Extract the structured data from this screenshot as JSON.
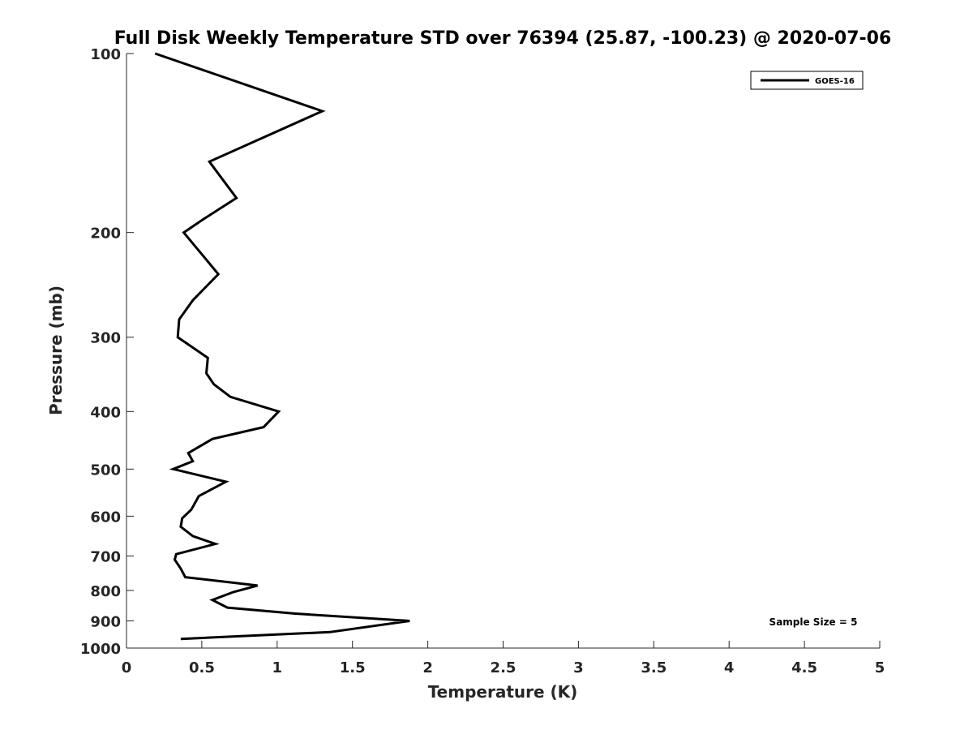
{
  "chart_data": {
    "type": "line",
    "title": "Full Disk Weekly Temperature STD over 76394 (25.87, -100.23) @ 2020-07-06",
    "xlabel": "Temperature (K)",
    "ylabel": "Pressure (mb)",
    "xlim": [
      0,
      5
    ],
    "ylim": [
      100,
      1000
    ],
    "y_scale": "log",
    "y_reversed": true,
    "x_ticks": [
      "0",
      "0.5",
      "1",
      "1.5",
      "2",
      "2.5",
      "3",
      "3.5",
      "4",
      "4.5",
      "5"
    ],
    "y_ticks": [
      "100",
      "200",
      "300",
      "400",
      "500",
      "600",
      "700",
      "800",
      "900",
      "1000"
    ],
    "grid": false,
    "legend_position": "top-right",
    "series": [
      {
        "name": "GOES-16",
        "color": "#000000",
        "points": [
          [
            0.19,
            100
          ],
          [
            1.3,
            125
          ],
          [
            0.55,
            152
          ],
          [
            0.73,
            175
          ],
          [
            0.51,
            190
          ],
          [
            0.38,
            200
          ],
          [
            0.61,
            235
          ],
          [
            0.44,
            260
          ],
          [
            0.35,
            280
          ],
          [
            0.34,
            300
          ],
          [
            0.54,
            325
          ],
          [
            0.53,
            345
          ],
          [
            0.58,
            360
          ],
          [
            0.69,
            378
          ],
          [
            1.01,
            400
          ],
          [
            0.91,
            425
          ],
          [
            0.57,
            445
          ],
          [
            0.41,
            470
          ],
          [
            0.44,
            485
          ],
          [
            0.31,
            500
          ],
          [
            0.66,
            525
          ],
          [
            0.48,
            555
          ],
          [
            0.43,
            585
          ],
          [
            0.37,
            605
          ],
          [
            0.36,
            625
          ],
          [
            0.44,
            648
          ],
          [
            0.59,
            668
          ],
          [
            0.33,
            695
          ],
          [
            0.32,
            710
          ],
          [
            0.36,
            735
          ],
          [
            0.39,
            760
          ],
          [
            0.87,
            785
          ],
          [
            0.71,
            805
          ],
          [
            0.57,
            830
          ],
          [
            0.67,
            855
          ],
          [
            1.12,
            875
          ],
          [
            1.88,
            900
          ],
          [
            1.35,
            940
          ],
          [
            0.36,
            965
          ]
        ]
      }
    ],
    "annotations": [
      "Sample Size = 5"
    ]
  }
}
